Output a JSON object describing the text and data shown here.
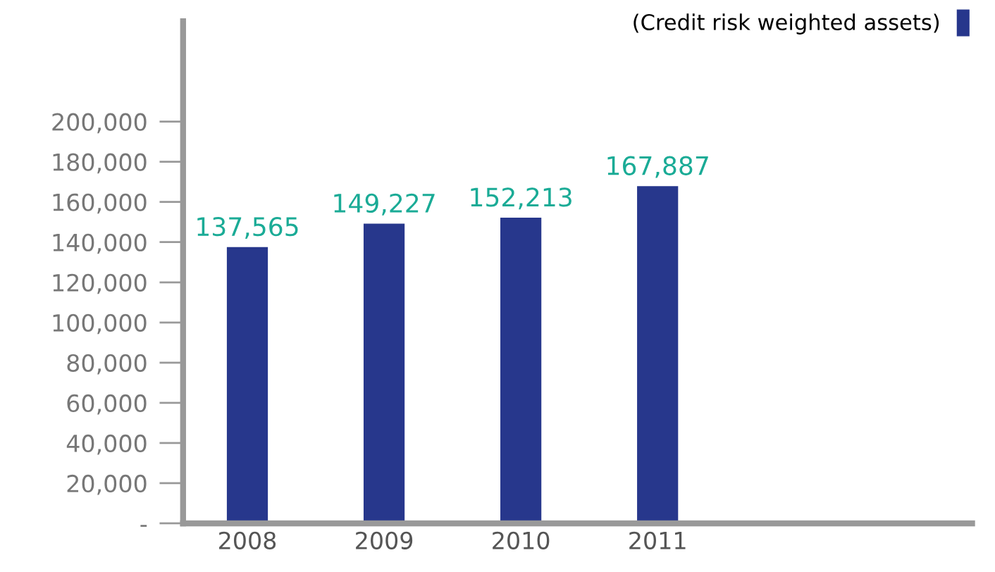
{
  "chart_data": {
    "type": "bar",
    "categories": [
      "2008",
      "2009",
      "2010",
      "2011"
    ],
    "series": [
      {
        "name": "(Credit risk weighted assets)",
        "color": "#27378c",
        "values": [
          137565,
          149227,
          152213,
          167887
        ]
      }
    ],
    "ylim": [
      0,
      250000
    ],
    "yticks": [
      {
        "value": 0,
        "label": "-"
      },
      {
        "value": 20000,
        "label": "20,000"
      },
      {
        "value": 40000,
        "label": "40,000"
      },
      {
        "value": 60000,
        "label": "60,000"
      },
      {
        "value": 80000,
        "label": "80,000"
      },
      {
        "value": 100000,
        "label": "100,000"
      },
      {
        "value": 120000,
        "label": "120,000"
      },
      {
        "value": 140000,
        "label": "140,000"
      },
      {
        "value": 160000,
        "label": "160,000"
      },
      {
        "value": 180000,
        "label": "180,000"
      },
      {
        "value": 200000,
        "label": "200,000"
      }
    ],
    "value_labels": [
      "137,565",
      "149,227",
      "152,213",
      "167,887"
    ],
    "legend": "top right",
    "grid": false
  }
}
